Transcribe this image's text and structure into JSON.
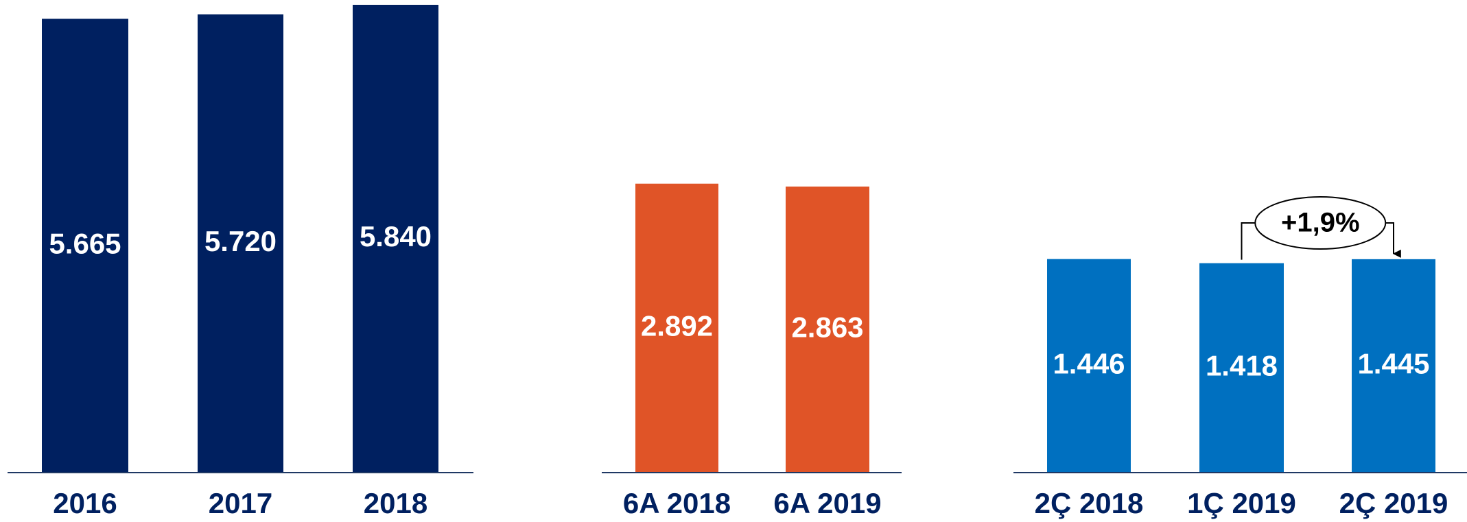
{
  "chart_data": [
    {
      "type": "bar",
      "categories": [
        "2016",
        "2017",
        "2018"
      ],
      "values": [
        5665,
        5720,
        5840
      ],
      "value_labels": [
        "5.665",
        "5.720",
        "5.840"
      ],
      "color": "#002060",
      "ylim": [
        0,
        5900
      ]
    },
    {
      "type": "bar",
      "categories": [
        "6A 2018",
        "6A 2019"
      ],
      "values": [
        2892,
        2863
      ],
      "value_labels": [
        "2.892",
        "2.863"
      ],
      "color": "#e05427",
      "ylim": [
        0,
        4730
      ]
    },
    {
      "type": "bar",
      "categories": [
        "2Ç 2018",
        "1Ç 2019",
        "2Ç 2019"
      ],
      "values": [
        1446,
        1418,
        1445
      ],
      "value_labels": [
        "1.446",
        "1.418",
        "1.445"
      ],
      "color": "#0070c0",
      "ylim": [
        0,
        3200
      ],
      "annotation": "+1,9%"
    }
  ]
}
